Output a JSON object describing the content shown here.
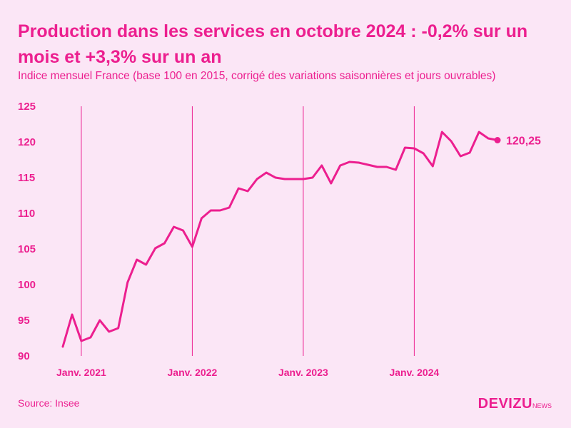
{
  "header": {
    "title": "Production dans les services en octobre 2024 : -0,2% sur un mois et +3,3% sur un an",
    "subtitle": "Indice mensuel France (base 100 en 2015, corrigé des variations saisonnières et jours ouvrables)"
  },
  "footer": {
    "source": "Source: Insee",
    "logo_main": "DEVIZU",
    "logo_sub": "NEWS"
  },
  "colors": {
    "accent": "#ec1f8f",
    "background": "#fbe6f6"
  },
  "chart_data": {
    "type": "line",
    "title": "Production dans les services en octobre 2024 : -0,2% sur un mois et +3,3% sur un an",
    "subtitle": "Indice mensuel France (base 100 en 2015, corrigé des variations saisonnières et jours ouvrables)",
    "xlabel": "",
    "ylabel": "",
    "ylim": [
      90,
      125
    ],
    "yticks": [
      90,
      95,
      100,
      105,
      110,
      115,
      120,
      125
    ],
    "x_start": "2020-11",
    "x_labels": [
      {
        "label": "Janv. 2021",
        "index": 2
      },
      {
        "label": "Janv. 2022",
        "index": 14
      },
      {
        "label": "Janv. 2023",
        "index": 26
      },
      {
        "label": "Janv. 2024",
        "index": 38
      }
    ],
    "series": [
      {
        "name": "Production dans les services",
        "values": [
          91.3,
          95.8,
          92.1,
          92.6,
          95.0,
          93.4,
          93.9,
          100.3,
          103.5,
          102.8,
          105.1,
          105.8,
          108.1,
          107.6,
          105.3,
          109.3,
          110.4,
          110.4,
          110.8,
          113.5,
          113.1,
          114.8,
          115.7,
          115.0,
          114.8,
          114.8,
          114.8,
          115.0,
          116.7,
          114.2,
          116.7,
          117.2,
          117.1,
          116.8,
          116.5,
          116.5,
          116.1,
          119.2,
          119.1,
          118.4,
          116.6,
          121.4,
          120.1,
          118.0,
          118.5,
          121.4,
          120.5,
          120.25
        ]
      }
    ],
    "annotations": [
      {
        "label": "120,25",
        "index": 47,
        "value": 120.25
      }
    ]
  }
}
